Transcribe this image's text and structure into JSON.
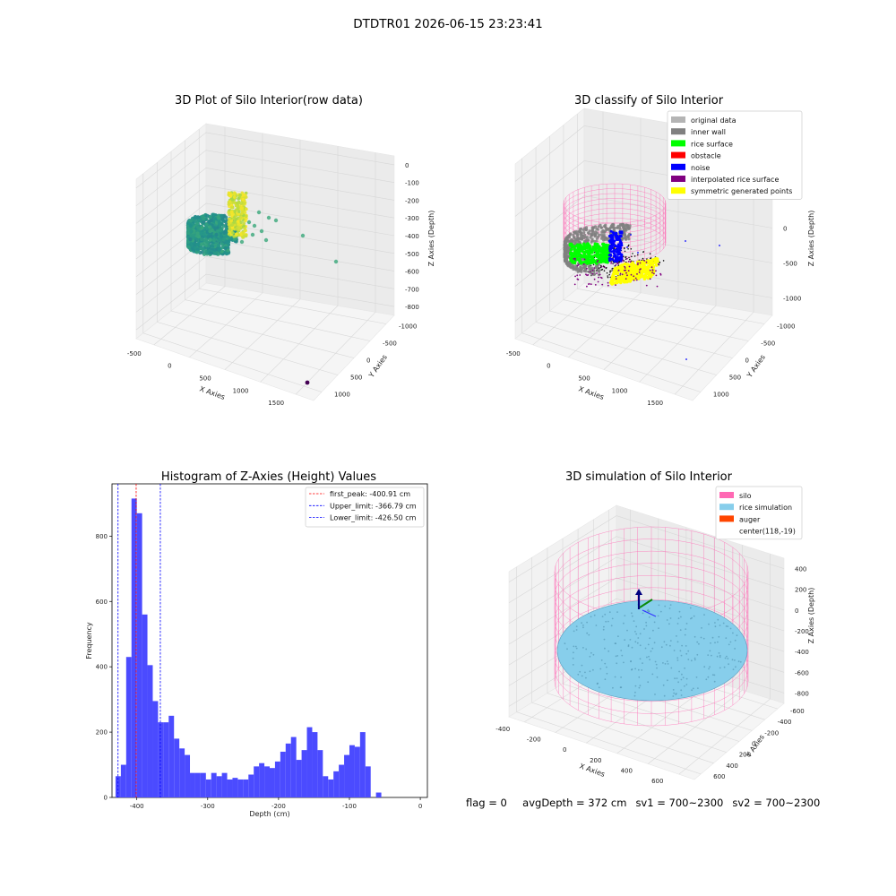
{
  "suptitle": "DTDTR01 2026-06-15 23:23:41",
  "footer": {
    "flag": "flag = 0",
    "avg_depth": "avgDepth = 372 cm",
    "sv1": "sv1 = 700~2300",
    "sv2": "sv2 = 700~2300"
  },
  "colors": {
    "original_data": "#b4b4b4",
    "inner_wall": "#808080",
    "rice_surface": "#00ff00",
    "obstacle": "#ff0000",
    "noise": "#0000ff",
    "interpolated_rice_surface": "#800080",
    "symmetric_generated_points": "#ffff00",
    "silo": "#ff69b4",
    "rice_simulation": "#87ceeb",
    "auger": "#ff4500",
    "hist_bar": "#4b4bff"
  },
  "chart_data": [
    {
      "type": "scatter",
      "title": "3D Plot of Silo Interior(row data)",
      "xlabel": "X Axies",
      "ylabel": "Y Axies",
      "zlabel": "Z Axies (Depth)",
      "x_ticks": [
        "-500",
        "0",
        "500",
        "1000",
        "1500"
      ],
      "y_ticks": [
        "-1000",
        "-500",
        "0",
        "500",
        "1000"
      ],
      "z_ticks": [
        "0",
        "-100",
        "-200",
        "-300",
        "-400",
        "-500",
        "-600",
        "-700",
        "-800"
      ],
      "colormap": "viridis"
    },
    {
      "type": "scatter",
      "title": "3D classify of Silo Interior",
      "xlabel": "X Axies",
      "ylabel": "Y Axies",
      "zlabel": "Z Axies (Depth)",
      "x_ticks": [
        "-500",
        "0",
        "500",
        "1000",
        "1500"
      ],
      "y_ticks": [
        "-1000",
        "-500",
        "0",
        "500",
        "1000"
      ],
      "z_ticks": [
        "1000",
        "500",
        "0",
        "-500",
        "-1000"
      ],
      "legend_position": "top-right",
      "legend": [
        {
          "label": "original data",
          "color_key": "original_data"
        },
        {
          "label": "inner wall",
          "color_key": "inner_wall"
        },
        {
          "label": "rice surface",
          "color_key": "rice_surface"
        },
        {
          "label": "obstacle",
          "color_key": "obstacle"
        },
        {
          "label": "noise",
          "color_key": "noise"
        },
        {
          "label": "interpolated rice surface",
          "color_key": "interpolated_rice_surface"
        },
        {
          "label": "symmetric generated points",
          "color_key": "symmetric_generated_points"
        }
      ]
    },
    {
      "type": "bar",
      "title": "Histogram of Z-Axies (Height) Values",
      "xlabel": "Depth (cm)",
      "ylabel": "Frequency",
      "xlim": [
        -435,
        10
      ],
      "ylim": [
        0,
        960
      ],
      "x_ticks": [
        -400,
        -300,
        -200,
        -100,
        0
      ],
      "y_ticks": [
        0,
        200,
        400,
        600,
        800
      ],
      "bin_start": -430,
      "bin_width": 7.5,
      "values": [
        65,
        100,
        430,
        915,
        870,
        560,
        405,
        295,
        230,
        230,
        250,
        180,
        150,
        130,
        75,
        75,
        75,
        55,
        75,
        65,
        75,
        55,
        60,
        55,
        55,
        70,
        95,
        105,
        95,
        90,
        110,
        140,
        165,
        185,
        115,
        145,
        215,
        200,
        145,
        65,
        55,
        80,
        100,
        130,
        160,
        155,
        200,
        95,
        0,
        15
      ],
      "vlines": [
        {
          "x": -400.91,
          "color": "#ff0000",
          "label": "first_peak: -400.91 cm"
        },
        {
          "x": -366.79,
          "color": "#0000ff",
          "label": "Upper_limit: -366.79 cm"
        },
        {
          "x": -426.5,
          "color": "#0000ff",
          "label": "Lower_limit: -426.50 cm"
        }
      ],
      "legend_position": "top-right"
    },
    {
      "type": "scatter",
      "title": "3D simulation of Silo Interior",
      "xlabel": "X Axies",
      "ylabel": "Y Axies",
      "zlabel": "Z Axies (Depth)",
      "x_ticks": [
        "-400",
        "-200",
        "0",
        "200",
        "400",
        "600"
      ],
      "y_ticks": [
        "-600",
        "-400",
        "-200",
        "0",
        "200",
        "400",
        "600"
      ],
      "z_ticks": [
        "400",
        "200",
        "0",
        "-200",
        "-400",
        "-600",
        "-800"
      ],
      "legend_position": "top-right",
      "legend": [
        {
          "label": "silo",
          "color_key": "silo"
        },
        {
          "label": "rice simulation",
          "color_key": "rice_simulation"
        },
        {
          "label": "auger",
          "color_key": "auger"
        },
        {
          "label": "center(118,-19)",
          "color_key": ""
        }
      ]
    }
  ]
}
